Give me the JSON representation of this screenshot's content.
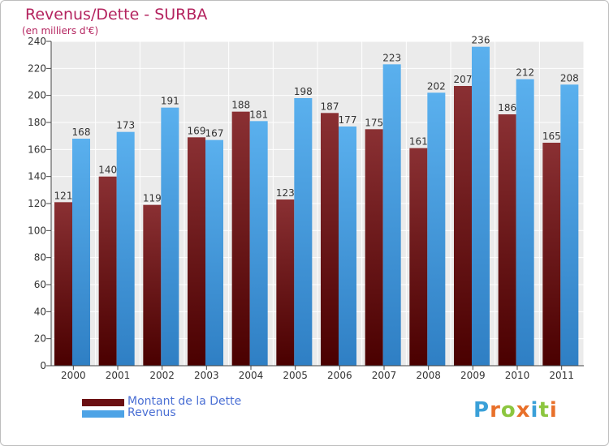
{
  "chart_data": {
    "type": "bar",
    "title": "Revenus/Dette - SURBA",
    "subtitle": "(en milliers d'€)",
    "categories": [
      "2000",
      "2001",
      "2002",
      "2003",
      "2004",
      "2005",
      "2006",
      "2007",
      "2008",
      "2009",
      "2010",
      "2011"
    ],
    "series": [
      {
        "name": "Montant de la Dette",
        "color": "#6b0f12",
        "values": [
          121,
          140,
          119,
          169,
          188,
          123,
          187,
          175,
          161,
          207,
          186,
          165
        ]
      },
      {
        "name": "Revenus",
        "color": "#4da3e6",
        "values": [
          168,
          173,
          191,
          167,
          181,
          198,
          177,
          223,
          202,
          236,
          212,
          208
        ]
      }
    ],
    "ylim": [
      0,
      240
    ],
    "yticks": [
      0,
      20,
      40,
      60,
      80,
      100,
      120,
      140,
      160,
      180,
      200,
      220,
      240
    ],
    "grid": true,
    "legend": "bottom-left"
  },
  "legend": {
    "debt_label": "Montant de la Dette",
    "revenue_label": "Revenus"
  },
  "logo": {
    "letters": [
      "P",
      "r",
      "o",
      "x",
      "i",
      "t",
      "i"
    ],
    "colors": [
      "#3aa0d8",
      "#e8702a",
      "#8cc63f",
      "#e8702a",
      "#3aa0d8",
      "#8cc63f",
      "#e8702a"
    ]
  }
}
